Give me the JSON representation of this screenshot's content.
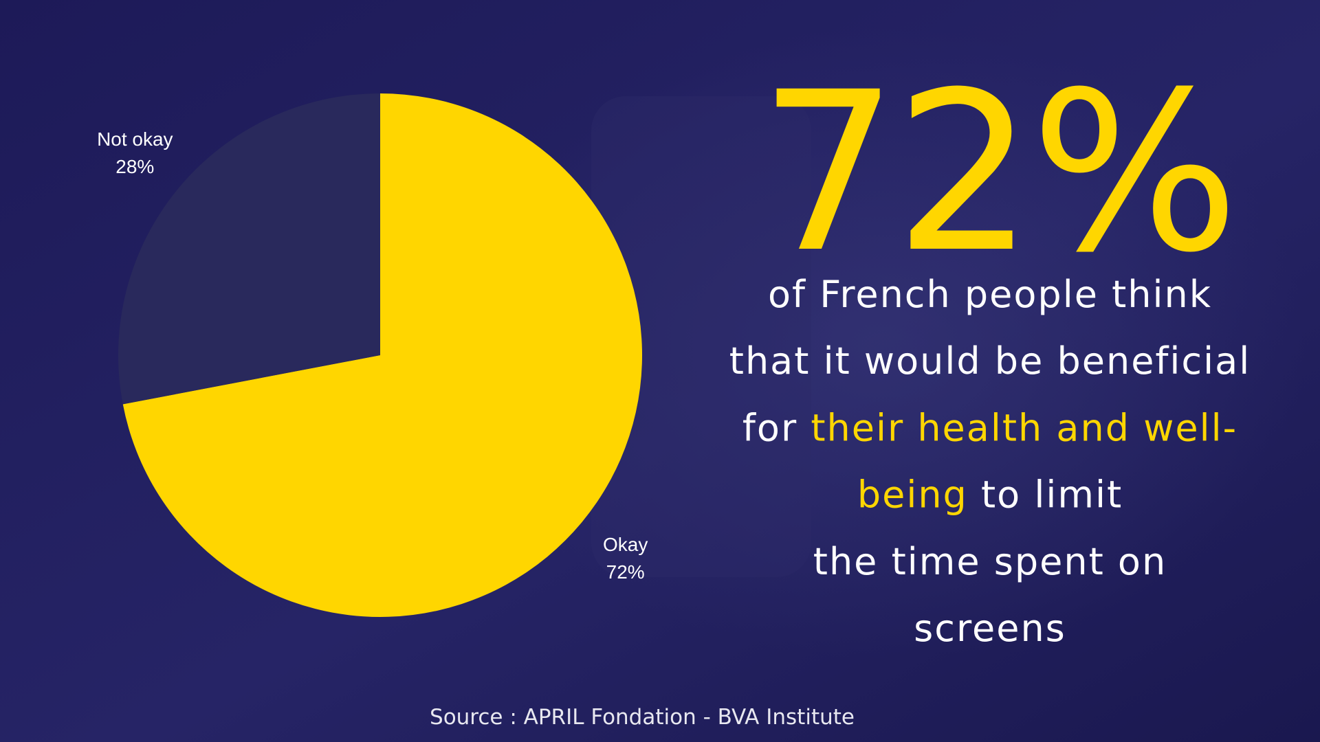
{
  "chart_data": {
    "type": "pie",
    "categories": [
      "Okay",
      "Not okay"
    ],
    "values": [
      72,
      28
    ],
    "value_labels": [
      "72%",
      "28%"
    ],
    "colors": [
      "#ffd600",
      "#29295c"
    ]
  },
  "headline": "72%",
  "text_lines": [
    [
      {
        "text": "of French people think",
        "color": "#ffffff"
      }
    ],
    [
      {
        "text": "that it would be beneficial",
        "color": "#ffffff"
      }
    ],
    [
      {
        "text": "for ",
        "color": "#ffffff"
      },
      {
        "text": "their health and well-",
        "color": "#ffd600"
      }
    ],
    [
      {
        "text": "being",
        "color": "#ffd600"
      },
      {
        "text": " to limit",
        "color": "#ffffff"
      }
    ],
    [
      {
        "text": "the time spent on",
        "color": "#ffffff"
      }
    ],
    [
      {
        "text": "screens",
        "color": "#ffffff"
      }
    ]
  ],
  "source": "Source : APRIL Fondation - BVA Institute"
}
